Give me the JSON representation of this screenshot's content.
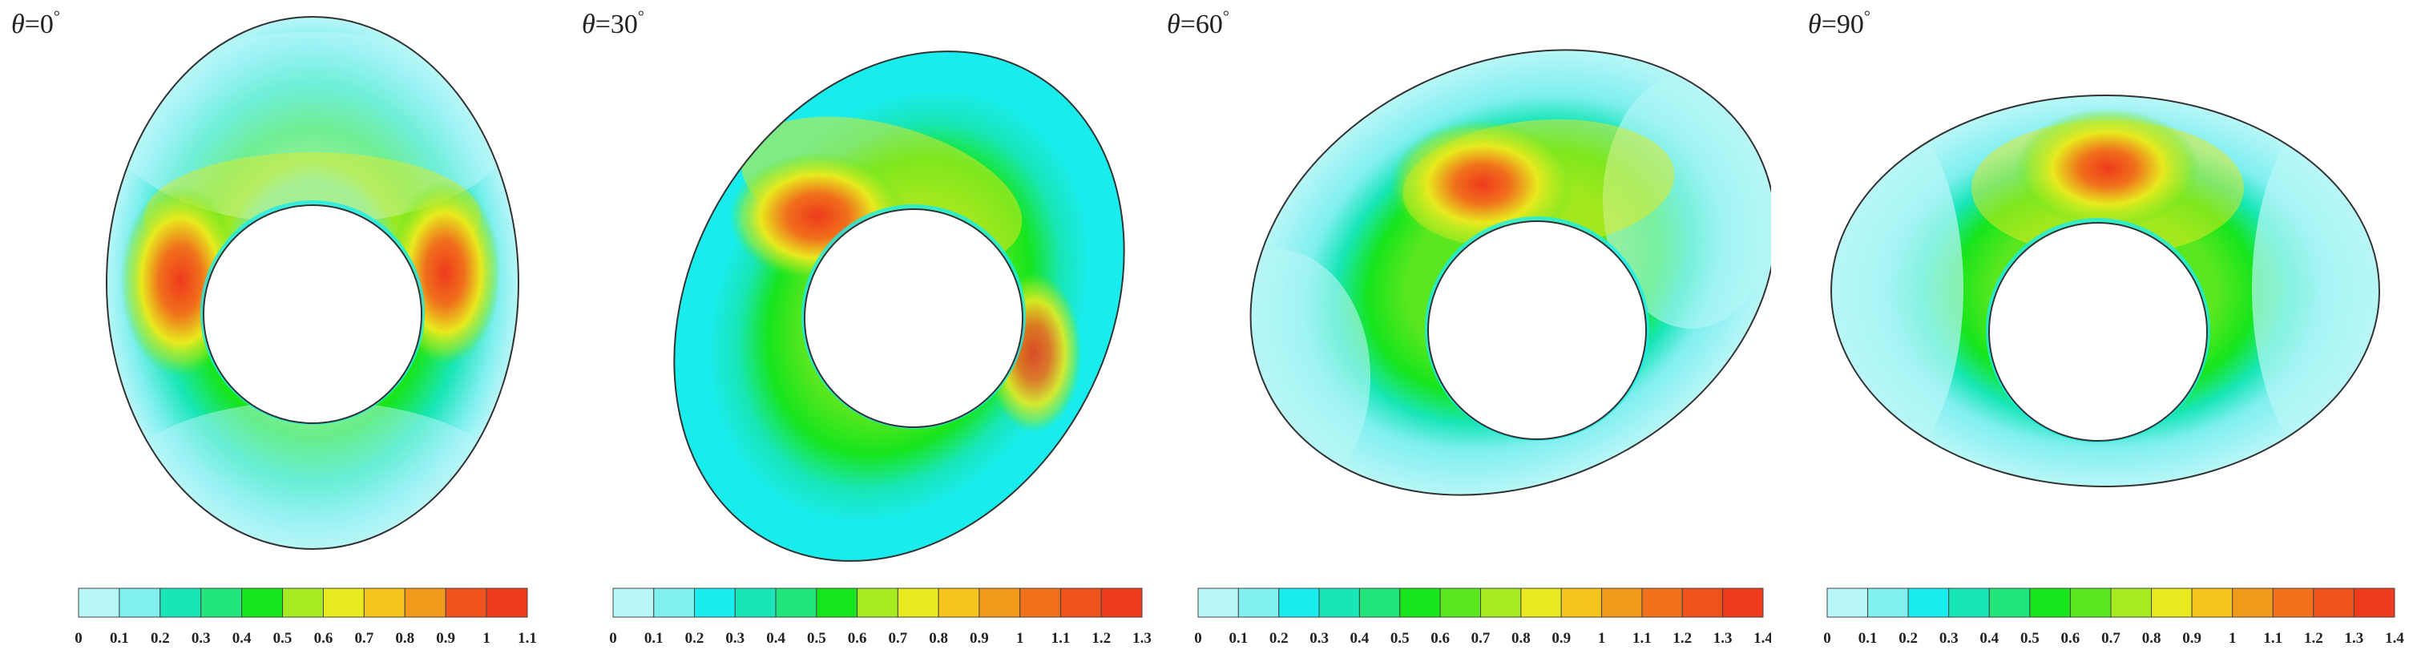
{
  "colormap": [
    "#b8f6f7",
    "#7fefef",
    "#19ecec",
    "#18e6b7",
    "#20e57a",
    "#17e51c",
    "#5be71f",
    "#a6ea22",
    "#e8ea1e",
    "#f7c41d",
    "#f3991b",
    "#f0701b",
    "#ef521c",
    "#ef3a1d"
  ],
  "panels": [
    {
      "label_symbol": "θ",
      "label_eq": "=0",
      "label_deg": "°",
      "ticks": [
        "0",
        "0.1",
        "0.2",
        "0.3",
        "0.4",
        "0.5",
        "0.6",
        "0.7",
        "0.8",
        "0.9",
        "1",
        "1.1"
      ],
      "max": 1.1
    },
    {
      "label_symbol": "θ",
      "label_eq": "=30",
      "label_deg": "°",
      "ticks": [
        "0",
        "0.1",
        "0.2",
        "0.3",
        "0.4",
        "0.5",
        "0.6",
        "0.7",
        "0.8",
        "0.9",
        "1",
        "1.1",
        "1.2",
        "1.3"
      ],
      "max": 1.3
    },
    {
      "label_symbol": "θ",
      "label_eq": "=60",
      "label_deg": "°",
      "ticks": [
        "0",
        "0.1",
        "0.2",
        "0.3",
        "0.4",
        "0.5",
        "0.6",
        "0.7",
        "0.8",
        "0.9",
        "1",
        "1.1",
        "1.2",
        "1.3",
        "1.4"
      ],
      "max": 1.4
    },
    {
      "label_symbol": "θ",
      "label_eq": "=90",
      "label_deg": "°",
      "ticks": [
        "0",
        "0.1",
        "0.2",
        "0.3",
        "0.4",
        "0.5",
        "0.6",
        "0.7",
        "0.8",
        "0.9",
        "1",
        "1.1",
        "1.2",
        "1.3",
        "1.4"
      ],
      "max": 1.4
    }
  ]
}
